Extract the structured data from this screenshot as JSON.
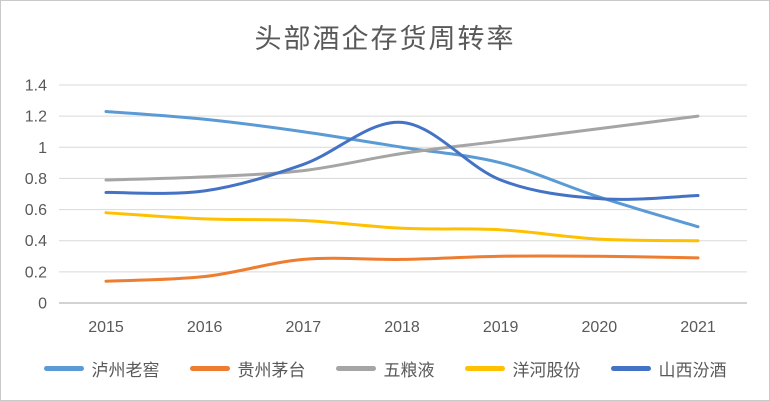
{
  "page": {
    "background": "#ffffff",
    "border_color": "#c9c9c9"
  },
  "chart_data": {
    "type": "line",
    "smooth": true,
    "title": "头部酒企存货周转率",
    "title_color": "#595959",
    "categories": [
      "2015",
      "2016",
      "2017",
      "2018",
      "2019",
      "2020",
      "2021"
    ],
    "y_ticks": [
      "1.4",
      "1.2",
      "1",
      "0.8",
      "0.6",
      "0.4",
      "0.2",
      "0"
    ],
    "ylim": [
      0,
      1.4
    ],
    "grid": true,
    "gridline_color": "#d9d9d9",
    "axis_line_color": "#c3c3c3",
    "axis_label_color": "#595959",
    "legend_position": "bottom",
    "series": [
      {
        "name": "泸州老窖",
        "color": "#5B9BD5",
        "values": [
          1.23,
          1.18,
          1.1,
          1.0,
          0.9,
          0.68,
          0.49
        ]
      },
      {
        "name": "贵州茅台",
        "color": "#ED7D31",
        "values": [
          0.14,
          0.17,
          0.28,
          0.28,
          0.3,
          0.3,
          0.29
        ]
      },
      {
        "name": "五粮液",
        "color": "#A5A5A5",
        "values": [
          0.79,
          0.81,
          0.85,
          0.96,
          1.04,
          1.12,
          1.2
        ]
      },
      {
        "name": "洋河股份",
        "color": "#FFC000",
        "values": [
          0.58,
          0.54,
          0.53,
          0.48,
          0.47,
          0.41,
          0.4
        ]
      },
      {
        "name": "山西汾酒",
        "color": "#4472C4",
        "values": [
          0.71,
          0.72,
          0.89,
          1.16,
          0.79,
          0.67,
          0.69
        ]
      }
    ]
  }
}
